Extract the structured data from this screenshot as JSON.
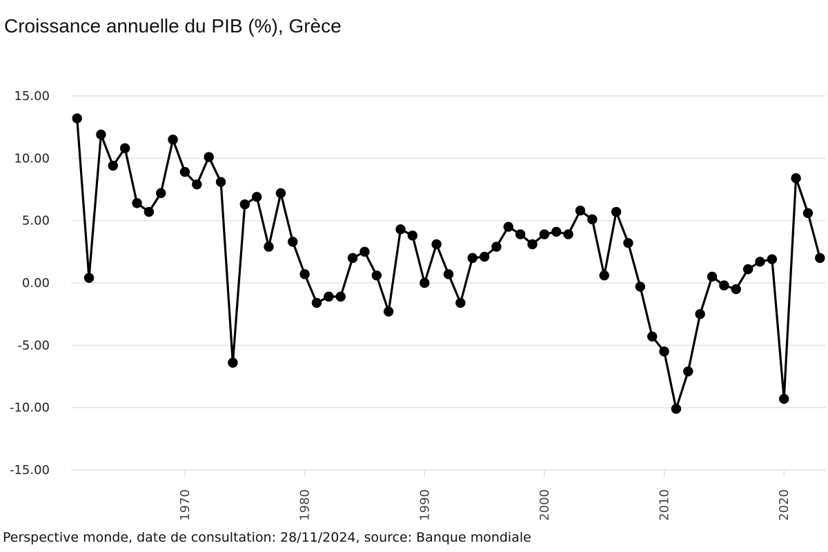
{
  "chart_data": {
    "type": "line",
    "title": "Croissance annuelle du PIB (%), Grèce",
    "xlabel": "",
    "ylabel": "",
    "ylim": [
      -15,
      15
    ],
    "xlim": [
      1960.5,
      2023.5
    ],
    "grid": true,
    "y_ticks": [
      "15.00",
      "10.00",
      "5.00",
      "0.00",
      "-5.00",
      "-10.00",
      "-15.00"
    ],
    "x_ticks": [
      "1970",
      "1980",
      "1990",
      "2000",
      "2010",
      "2020"
    ],
    "colors": {
      "line": "#000000",
      "grid": "#d9dde3"
    },
    "x": [
      1961,
      1962,
      1963,
      1964,
      1965,
      1966,
      1967,
      1968,
      1969,
      1970,
      1971,
      1972,
      1973,
      1974,
      1975,
      1976,
      1977,
      1978,
      1979,
      1980,
      1981,
      1982,
      1983,
      1984,
      1985,
      1986,
      1987,
      1988,
      1989,
      1990,
      1991,
      1992,
      1993,
      1994,
      1995,
      1996,
      1997,
      1998,
      1999,
      2000,
      2001,
      2002,
      2003,
      2004,
      2005,
      2006,
      2007,
      2008,
      2009,
      2010,
      2011,
      2012,
      2013,
      2014,
      2015,
      2016,
      2017,
      2018,
      2019,
      2020,
      2021,
      2022,
      2023
    ],
    "values": [
      13.2,
      0.4,
      11.9,
      9.4,
      10.8,
      6.4,
      5.7,
      7.2,
      11.5,
      8.9,
      7.9,
      10.1,
      8.1,
      -6.4,
      6.3,
      6.9,
      2.9,
      7.2,
      3.3,
      0.7,
      -1.6,
      -1.1,
      -1.1,
      2.0,
      2.5,
      0.6,
      -2.3,
      4.3,
      3.8,
      0.0,
      3.1,
      0.7,
      -1.6,
      2.0,
      2.1,
      2.9,
      4.5,
      3.9,
      3.1,
      3.9,
      4.1,
      3.9,
      5.8,
      5.1,
      0.6,
      5.7,
      3.2,
      -0.3,
      -4.3,
      -5.5,
      -10.1,
      -7.1,
      -2.5,
      0.5,
      -0.2,
      -0.5,
      1.1,
      1.7,
      1.9,
      -9.3,
      8.4,
      5.6,
      2.0
    ]
  },
  "footer": {
    "note": "Perspective monde, date de consultation: 28/11/2024, source: Banque mondiale"
  }
}
